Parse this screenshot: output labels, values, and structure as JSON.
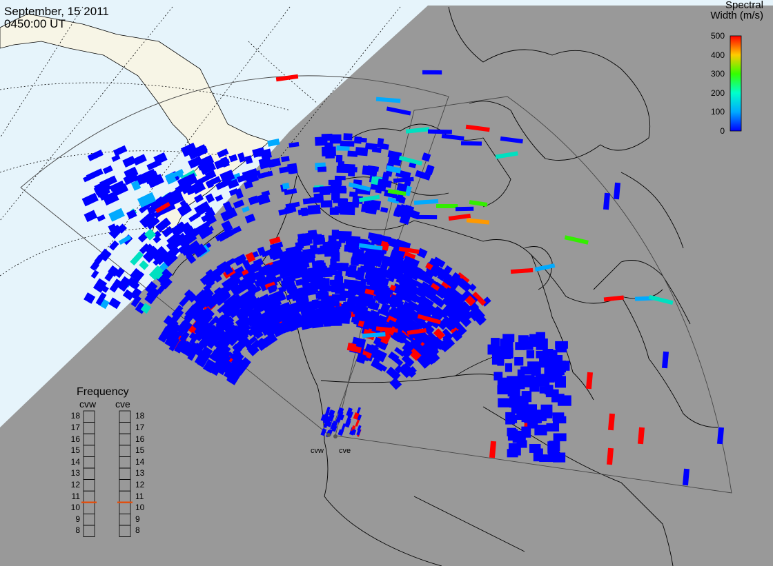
{
  "header": {
    "date": "September, 15 2011",
    "time": "0450:00 UT"
  },
  "colorbar": {
    "title_line1": "Spectral",
    "title_line2": "Width (m/s)",
    "ticks": [
      "500",
      "400",
      "300",
      "200",
      "100",
      "0"
    ],
    "min": 0,
    "max": 500,
    "colors": [
      "#0000ff",
      "#00aaff",
      "#00ffcc",
      "#33ff00",
      "#ffcc00",
      "#ff0000"
    ]
  },
  "frequency": {
    "title": "Frequency",
    "sites": [
      {
        "name": "cvw",
        "value_mhz": 10.5
      },
      {
        "name": "cve",
        "value_mhz": 10.5
      }
    ],
    "ticks": [
      "18",
      "17",
      "16",
      "15",
      "14",
      "13",
      "12",
      "11",
      "10",
      "9",
      "8"
    ],
    "min": 8,
    "max": 18,
    "marker_color": "#e05010"
  },
  "radar_sites": [
    {
      "name": "cvw"
    },
    {
      "name": "cve"
    }
  ],
  "colors": {
    "night": "#999999",
    "day_ocean": "#e6f4fb",
    "day_land": "#f7f5e6",
    "coast": "#000000",
    "fov": "#333333"
  }
}
